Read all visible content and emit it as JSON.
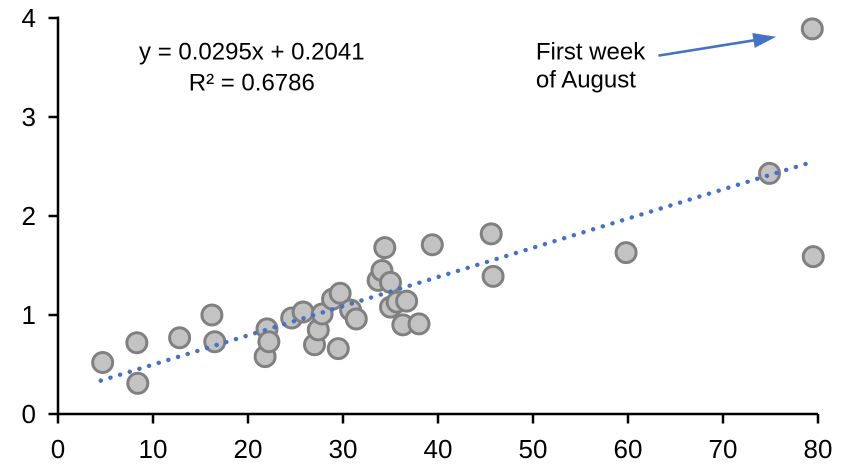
{
  "chart_data": {
    "type": "scatter",
    "title": "",
    "xlabel": "",
    "ylabel": "",
    "xlim": [
      0,
      80
    ],
    "ylim": [
      0,
      4
    ],
    "x_ticks": [
      "0",
      "10",
      "20",
      "30",
      "40",
      "50",
      "60",
      "70",
      "80"
    ],
    "y_ticks": [
      "0",
      "1",
      "2",
      "3",
      "4"
    ],
    "grid": false,
    "legend": false,
    "points": [
      [
        4.7,
        0.52
      ],
      [
        8.3,
        0.72
      ],
      [
        8.4,
        0.31
      ],
      [
        12.8,
        0.77
      ],
      [
        16.2,
        1.0
      ],
      [
        16.5,
        0.73
      ],
      [
        21.8,
        0.58
      ],
      [
        22.0,
        0.86
      ],
      [
        22.2,
        0.73
      ],
      [
        24.6,
        0.97
      ],
      [
        25.8,
        1.03
      ],
      [
        27.0,
        0.7
      ],
      [
        27.4,
        0.85
      ],
      [
        27.8,
        1.01
      ],
      [
        28.9,
        1.16
      ],
      [
        29.5,
        0.66
      ],
      [
        29.7,
        1.22
      ],
      [
        30.8,
        1.05
      ],
      [
        31.4,
        0.96
      ],
      [
        33.7,
        1.35
      ],
      [
        34.1,
        1.45
      ],
      [
        34.4,
        1.68
      ],
      [
        35.0,
        1.33
      ],
      [
        35.0,
        1.08
      ],
      [
        35.7,
        1.13
      ],
      [
        36.3,
        0.9
      ],
      [
        36.7,
        1.14
      ],
      [
        38.0,
        0.91
      ],
      [
        39.4,
        1.71
      ],
      [
        45.6,
        1.82
      ],
      [
        45.8,
        1.39
      ],
      [
        59.8,
        1.63
      ],
      [
        74.9,
        2.43
      ],
      [
        79.4,
        3.89
      ],
      [
        79.5,
        1.59
      ]
    ],
    "trendline": {
      "equation": "y = 0.0295x + 0.2041",
      "r_squared": "R² = 0.6786",
      "slope": 0.0295,
      "intercept": 0.2041,
      "x_start": 4.5,
      "x_end": 79.6,
      "style": "dotted",
      "label_pos": [
        20.4,
        3.58
      ],
      "label_line2_pos": [
        20.4,
        3.27
      ]
    },
    "annotation": {
      "line1": "First week",
      "line2": "of August",
      "text_pos": [
        50.3,
        3.58
      ],
      "line2_pos": [
        50.3,
        3.3
      ],
      "arrow_from": [
        63.2,
        3.62
      ],
      "arrow_to": [
        75.6,
        3.81
      ],
      "target_point": [
        79.4,
        3.89
      ]
    },
    "colors": {
      "marker_fill": "#c3c3c3",
      "marker_stroke": "#808080",
      "trendline": "#4472c4",
      "arrow": "#4472c4",
      "axis": "#000000",
      "text": "#000000"
    }
  }
}
